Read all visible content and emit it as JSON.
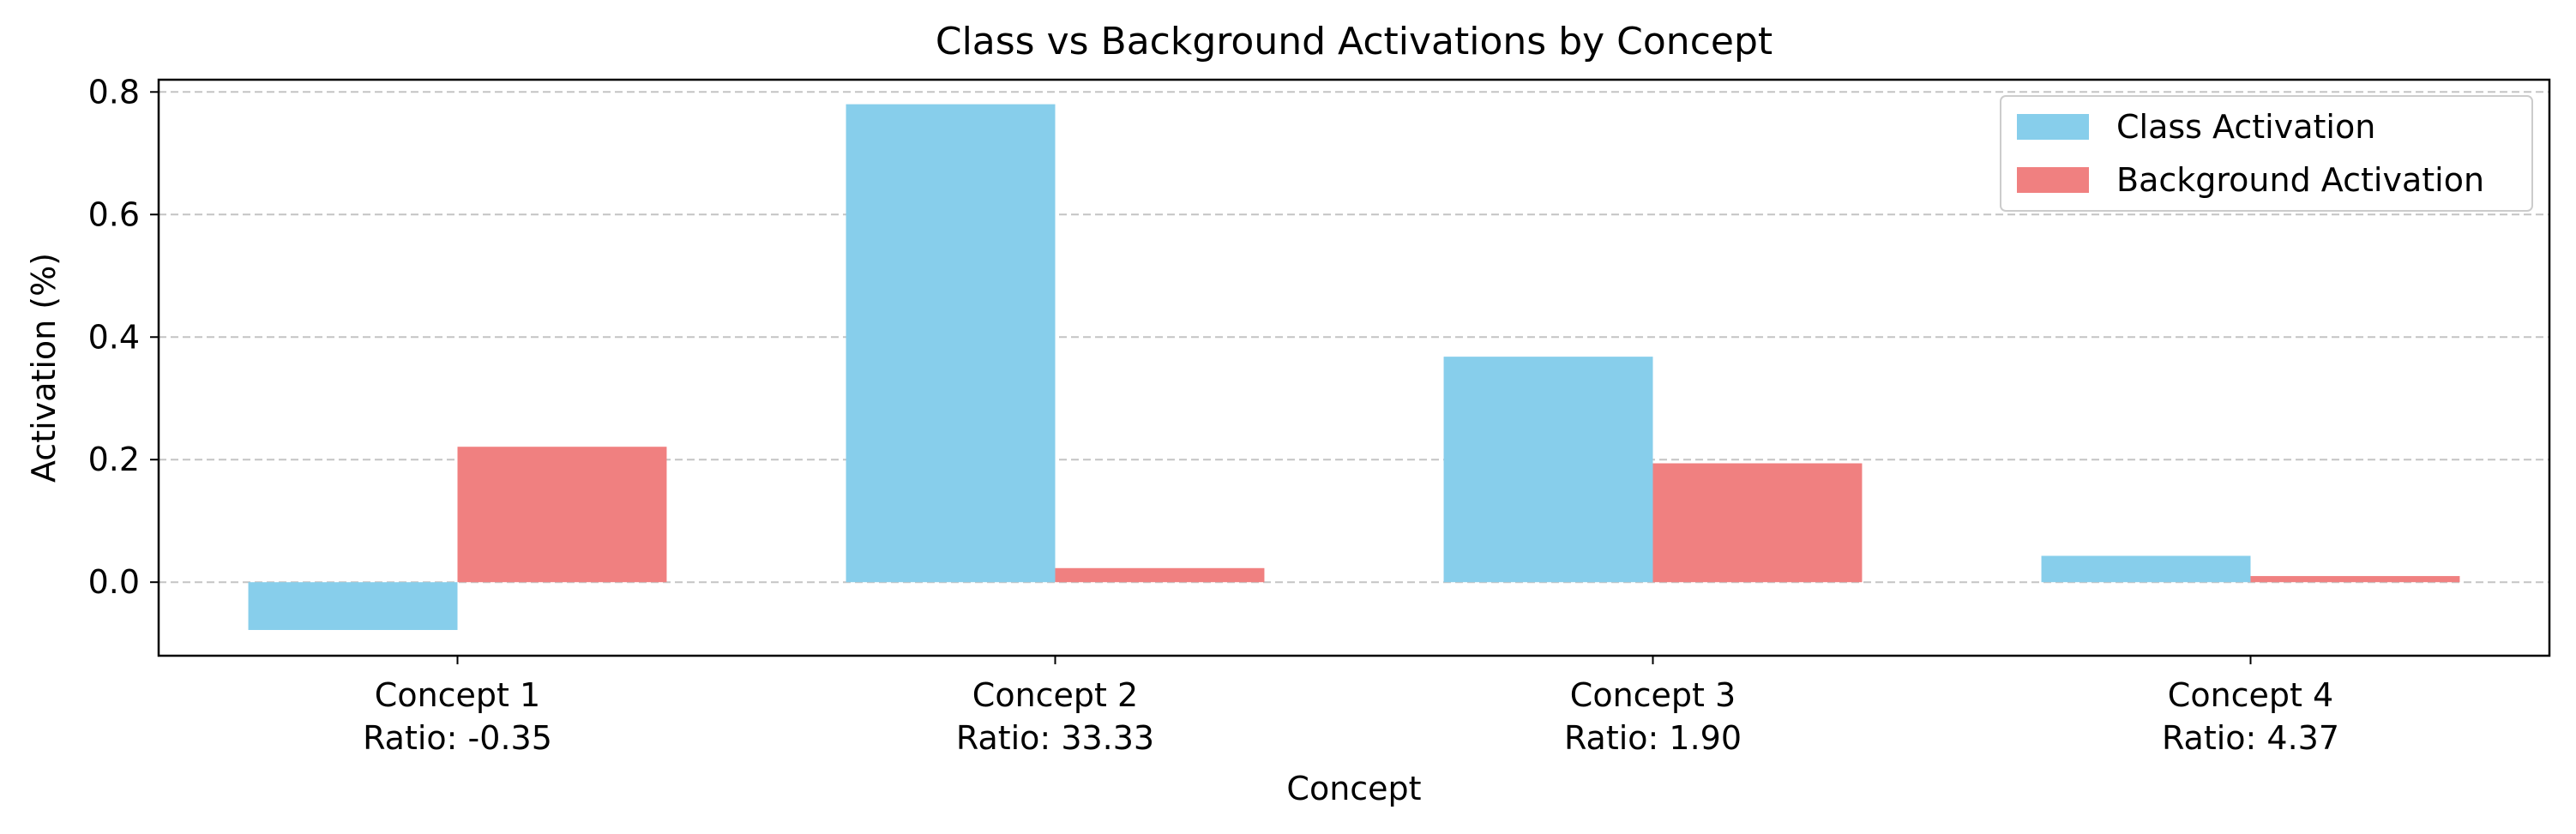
{
  "chart_data": {
    "type": "bar",
    "title": "Class vs Background Activations by Concept",
    "xlabel": "Concept",
    "ylabel": "Activation (%)",
    "ylim": [
      -0.12,
      0.82
    ],
    "yticks": [
      0.0,
      0.2,
      0.4,
      0.6,
      0.8
    ],
    "ytick_labels": [
      "0.0",
      "0.2",
      "0.4",
      "0.6",
      "0.8"
    ],
    "grid": "y-dashed",
    "legend_position": "upper-right",
    "categories": [
      "Concept 1",
      "Concept 2",
      "Concept 3",
      "Concept 4"
    ],
    "category_sublabels": [
      "Ratio: -0.35",
      "Ratio: 33.33",
      "Ratio: 1.90",
      "Ratio: 4.37"
    ],
    "series": [
      {
        "name": "Class Activation",
        "color": "#87ceeb",
        "values": [
          -0.078,
          0.78,
          0.368,
          0.043
        ]
      },
      {
        "name": "Background Activation",
        "color": "#f08080",
        "values": [
          0.221,
          0.023,
          0.194,
          0.01
        ]
      }
    ]
  }
}
